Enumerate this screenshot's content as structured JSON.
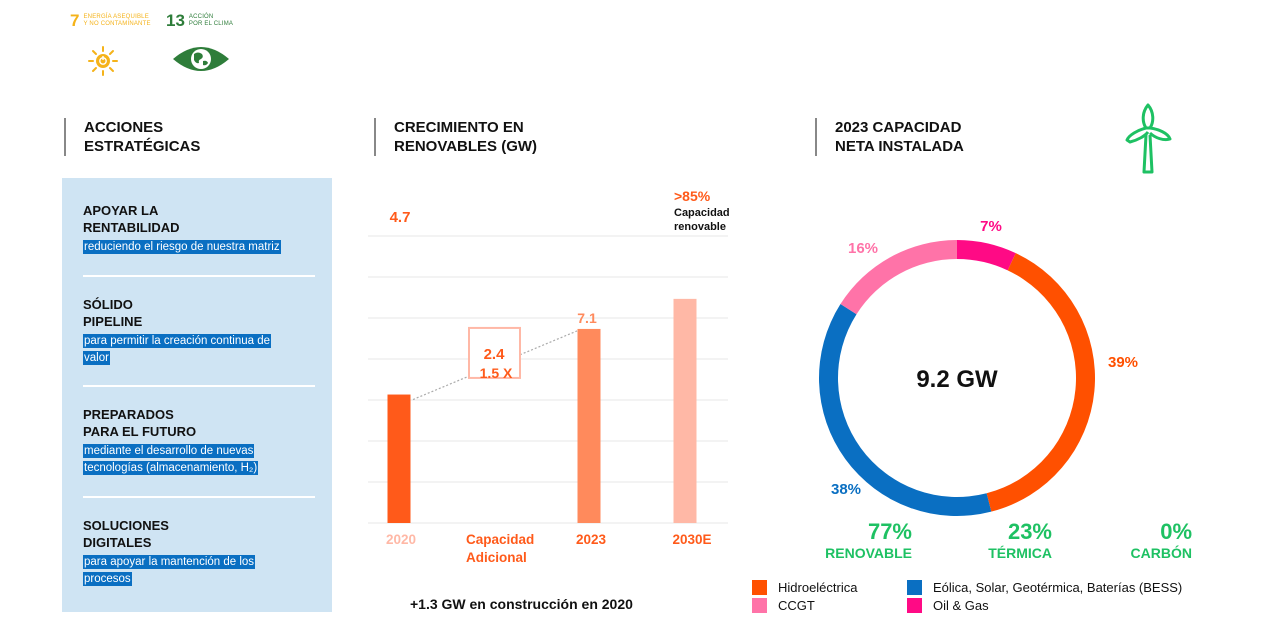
{
  "ods": [
    {
      "number": "7",
      "label_line1": "ENERGÍA ASEQUIBLE",
      "label_line2": "Y NO CONTAMINANTE",
      "icon": "sun-power-icon",
      "color": "#f5b31a"
    },
    {
      "number": "13",
      "label_line1": "ACCIÓN",
      "label_line2": "POR EL CLIMA",
      "icon": "earth-eye-icon",
      "color": "#2e7d3a"
    }
  ],
  "actions": {
    "title_line1": "ACCIONES",
    "title_line2": "ESTRATÉGICAS",
    "items": [
      {
        "title_line1": "APOYAR LA",
        "title_line2": "RENTABILIDAD",
        "desc_line1": "reduciendo el riesgo de nuestra matriz",
        "desc_line2": ""
      },
      {
        "title_line1": "SÓLIDO",
        "title_line2": "PIPELINE",
        "desc_line1": "para permitir la creación continua de",
        "desc_line2": "valor"
      },
      {
        "title_line1": "PREPARADOS",
        "title_line2": "PARA EL FUTURO",
        "desc_line1": "mediante el desarrollo de nuevas",
        "desc_line2": "tecnologías (almacenamiento, H₂)"
      },
      {
        "title_line1": "SOLUCIONES",
        "title_line2": "DIGITALES",
        "desc_line1": "para apoyar la mantención de los",
        "desc_line2": "procesos"
      }
    ]
  },
  "growth": {
    "title_line1": "CRECIMIENTO EN",
    "title_line2": "RENOVABLES (GW)",
    "footer": "+1.3 GW en construcción en 2020"
  },
  "capacity": {
    "title_line1": "2023 CAPACIDAD",
    "title_line2": "NETA INSTALADA",
    "icon": "wind-turbine-icon",
    "summary": [
      {
        "pct": "77%",
        "label": "RENOVABLE"
      },
      {
        "pct": "23%",
        "label": "TÉRMICA"
      },
      {
        "pct": "0%",
        "label": "CARBÓN"
      }
    ],
    "summary_color": "#1ec163"
  },
  "chart_data": [
    {
      "type": "bar",
      "title": "CRECIMIENTO EN RENOVABLES (GW)",
      "categories": [
        "2020",
        "Capacidad Adicional",
        "2023",
        "2030E"
      ],
      "category_lines": [
        [
          "2020"
        ],
        [
          "Capacidad",
          "Adicional"
        ],
        [
          "2023"
        ],
        [
          "2030E"
        ]
      ],
      "category_colors": [
        "#ffb8a6",
        "#ff5a1a",
        "#ff5a1a",
        "#ff5a1a"
      ],
      "values": [
        4.7,
        2.4,
        7.1,
        8.2
      ],
      "value_labels": [
        "4.7",
        "2.4",
        "7.1",
        ""
      ],
      "bar_colors": [
        "#ff5a1a",
        null,
        "#ff8a5c",
        "#ffb8a6"
      ],
      "annotations": {
        "increment_box": "2.4",
        "multiplier": "1.5 X",
        "target_pct": ">85%",
        "target_line1": "Capacidad",
        "target_line2": "renovable"
      },
      "ylim": [
        0,
        10.5
      ],
      "grid": true,
      "xlabel": "",
      "ylabel": ""
    },
    {
      "type": "pie",
      "title": "2023 CAPACIDAD NETA INSTALADA",
      "center_label": "9.2 GW",
      "total_gw": 9.2,
      "slices": [
        {
          "name": "Oil & Gas",
          "value": 7,
          "label": "7%",
          "color": "#ff0a85"
        },
        {
          "name": "Hidroeléctrica",
          "value": 39,
          "label": "39%",
          "color": "#ff5000"
        },
        {
          "name": "Eólica, Solar, Geotérmica, Baterías (BESS)",
          "value": 38,
          "label": "38%",
          "color": "#0a6fc2"
        },
        {
          "name": "CCGT",
          "value": 16,
          "label": "16%",
          "color": "#ff73a8"
        }
      ],
      "legend": [
        {
          "name": "Hidroeléctrica",
          "color": "#ff5000"
        },
        {
          "name": "Eólica, Solar, Geotérmica, Baterías (BESS)",
          "color": "#0a6fc2"
        },
        {
          "name": "CCGT",
          "color": "#ff73a8"
        },
        {
          "name": "Oil & Gas",
          "color": "#ff0a85"
        }
      ],
      "legend_position": "bottom"
    }
  ]
}
